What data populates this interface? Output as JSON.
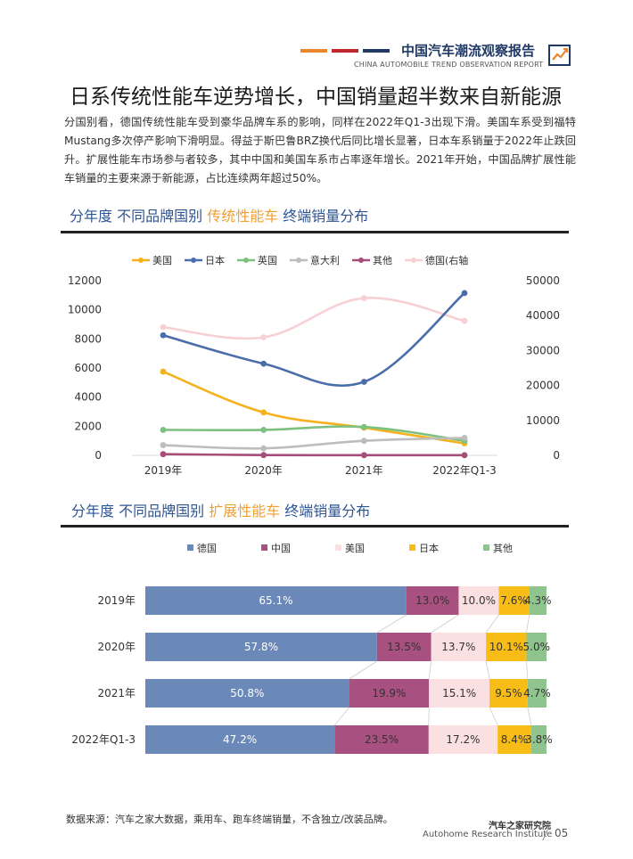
{
  "header": {
    "title": "中国汽车潮流观察报告",
    "subtitle": "CHINA AUTOMOBILE TREND OBSERVATION REPORT",
    "line_colors": [
      "#e8872e",
      "#c0262d",
      "#1f3864"
    ]
  },
  "page_title": "日系传统性能车逆势增长，中国销量超半数来自新能源",
  "body_text": "分国别看，德国传统性能车受到豪华品牌车系的影响，同样在2022年Q1-3出现下滑。美国车系受到福特Mustang多次停产影响下滑明显。得益于斯巴鲁BRZ换代后同比增长显著，日本车系销量于2022年止跌回升。扩展性能车市场参与者较多，其中中国和美国车系市占率逐年增长。2021年开始，中国品牌扩展性能车销量的主要来源于新能源，占比连续两年超过50%。",
  "section1": {
    "prefix": "分年度 不同品牌国别 ",
    "highlight": "传统性能车",
    "suffix": " 终端销量分布"
  },
  "section2": {
    "prefix": "分年度 不同品牌国别 ",
    "highlight": "扩展性能车",
    "suffix": " 终端销量分布"
  },
  "chart_data": [
    {
      "type": "line",
      "categories": [
        "2019年",
        "2020年",
        "2021年",
        "2022年Q1-3"
      ],
      "y_left": {
        "ticks": [
          "0",
          "2000",
          "4000",
          "6000",
          "8000",
          "10000",
          "12000"
        ],
        "range": [
          0,
          12000
        ]
      },
      "y_right": {
        "ticks": [
          "0",
          "10000",
          "20000",
          "30000",
          "40000",
          "50000"
        ],
        "range": [
          0,
          50000
        ]
      },
      "legend_position": "top",
      "series": [
        {
          "name": "美国",
          "color": "#f5b21e",
          "axis": "left",
          "values": [
            5750,
            2950,
            1900,
            820
          ]
        },
        {
          "name": "日本",
          "color": "#4a6ea9",
          "axis": "left",
          "values": [
            8250,
            6300,
            5050,
            11150
          ]
        },
        {
          "name": "英国",
          "color": "#7cc17f",
          "axis": "left",
          "values": [
            1750,
            1750,
            1950,
            1000
          ]
        },
        {
          "name": "意大利",
          "color": "#bdbdbd",
          "axis": "left",
          "values": [
            700,
            480,
            1000,
            1200
          ]
        },
        {
          "name": "其他",
          "color": "#a64d79",
          "axis": "left",
          "values": [
            80,
            20,
            10,
            10
          ]
        },
        {
          "name": "德国(右轴",
          "color": "#f7d0d4",
          "axis": "right",
          "values": [
            36700,
            33800,
            45000,
            38500
          ]
        }
      ]
    },
    {
      "type": "bar",
      "orientation": "horizontal",
      "stacked": "percent",
      "categories": [
        "2019年",
        "2020年",
        "2021年",
        "2022年Q1-3"
      ],
      "legend_position": "top",
      "series": [
        {
          "name": "德国",
          "color": "#6b89b8",
          "text_color": "#ffffff",
          "values": [
            65.1,
            57.8,
            50.8,
            47.2
          ],
          "labels": [
            "65.1%",
            "57.8%",
            "50.8%",
            "47.2%"
          ]
        },
        {
          "name": "中国",
          "color": "#a8507f",
          "text_color": "#333333",
          "values": [
            13.0,
            13.5,
            19.9,
            23.5
          ],
          "labels": [
            "13.0%",
            "13.5%",
            "19.9%",
            "23.5%"
          ]
        },
        {
          "name": "美国",
          "color": "#fbe0e2",
          "text_color": "#333333",
          "values": [
            10.0,
            13.7,
            15.1,
            17.2
          ],
          "labels": [
            "10.0%",
            "13.7%",
            "15.1%",
            "17.2%"
          ]
        },
        {
          "name": "日本",
          "color": "#f7bd16",
          "text_color": "#333333",
          "values": [
            7.6,
            10.1,
            9.5,
            8.4
          ],
          "labels": [
            "7.6%",
            "10.1%",
            "9.5%",
            "8.4%"
          ]
        },
        {
          "name": "其他",
          "color": "#8fc48f",
          "text_color": "#333333",
          "values": [
            4.3,
            5.0,
            4.7,
            3.8
          ],
          "labels": [
            "4.3%",
            "5.0%",
            "4.7%",
            "3.8%"
          ]
        }
      ]
    }
  ],
  "footer": {
    "source": "数据来源：汽车之家大数据，乘用车、跑车终端销量，不含独立/改装品牌。",
    "institute": "汽车之家研究院",
    "institute_en": "Autohome Research Institute",
    "page": "05"
  }
}
